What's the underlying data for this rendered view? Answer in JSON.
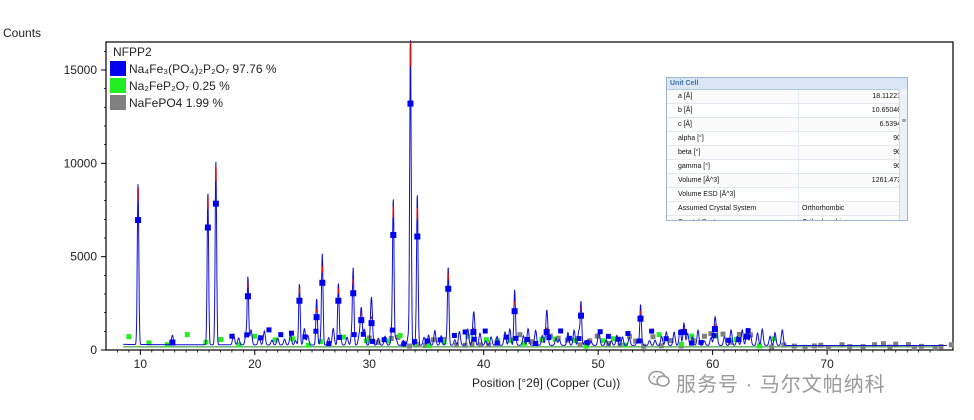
{
  "chart_data": {
    "type": "line",
    "title": "NFPP2",
    "xlabel": "Position [°2θ] (Copper (Cu))",
    "ylabel": "Counts",
    "xlim": [
      7,
      81
    ],
    "ylim": [
      0,
      16500
    ],
    "x_ticks": [
      "10",
      "20",
      "30",
      "40",
      "50",
      "60",
      "70"
    ],
    "y_ticks": [
      "0",
      "5000",
      "10000",
      "15000"
    ],
    "legend_position": "top-left",
    "legend": [
      {
        "name": "Na₄Fe₃(PO₄)₂P₂O₇ 97.76 %",
        "color": "#0000ee"
      },
      {
        "name": "Na₂FeP₂O₇ 0.25 %",
        "color": "#22ee22"
      },
      {
        "name": "NaFePO4 1.99 %",
        "color": "#808080"
      }
    ],
    "peaks": [
      {
        "x": 9.8,
        "y": 8700
      },
      {
        "x": 12.8,
        "y": 500
      },
      {
        "x": 15.9,
        "y": 8200
      },
      {
        "x": 16.6,
        "y": 9800
      },
      {
        "x": 19.4,
        "y": 3600
      },
      {
        "x": 23.9,
        "y": 3300
      },
      {
        "x": 25.4,
        "y": 2200
      },
      {
        "x": 25.9,
        "y": 4500
      },
      {
        "x": 27.3,
        "y": 3300
      },
      {
        "x": 28.6,
        "y": 3800
      },
      {
        "x": 29.3,
        "y": 2000
      },
      {
        "x": 30.2,
        "y": 1800
      },
      {
        "x": 32.1,
        "y": 7700
      },
      {
        "x": 33.6,
        "y": 16500
      },
      {
        "x": 34.2,
        "y": 7600
      },
      {
        "x": 36.9,
        "y": 4100
      },
      {
        "x": 39.1,
        "y": 1200
      },
      {
        "x": 42.7,
        "y": 2600
      },
      {
        "x": 45.5,
        "y": 1200
      },
      {
        "x": 48.5,
        "y": 2300
      },
      {
        "x": 53.7,
        "y": 2100
      },
      {
        "x": 57.5,
        "y": 1200
      },
      {
        "x": 60.2,
        "y": 1400
      },
      {
        "x": 63.0,
        "y": 900
      }
    ],
    "background_level": 300
  },
  "unit_cell": {
    "title": "Unit Cell",
    "rows": [
      {
        "key": "a [Å]",
        "value": "18.11221"
      },
      {
        "key": "b [Å]",
        "value": "10.65046"
      },
      {
        "key": "c [Å]",
        "value": "6.5394"
      },
      {
        "key": "alpha [°]",
        "value": "90"
      },
      {
        "key": "beta [°]",
        "value": "90"
      },
      {
        "key": "gamma [°]",
        "value": "90"
      },
      {
        "key": "Volume [Å^3]",
        "value": "1261.473"
      },
      {
        "key": "Volume ESD [Å^3]",
        "value": "-"
      },
      {
        "key": "Assumed Crystal System",
        "value": "Orthorhombic"
      },
      {
        "key": "Crystal System",
        "value": "Orthorhombic"
      }
    ]
  },
  "watermark": "服务号 · 马尔文帕纳科"
}
